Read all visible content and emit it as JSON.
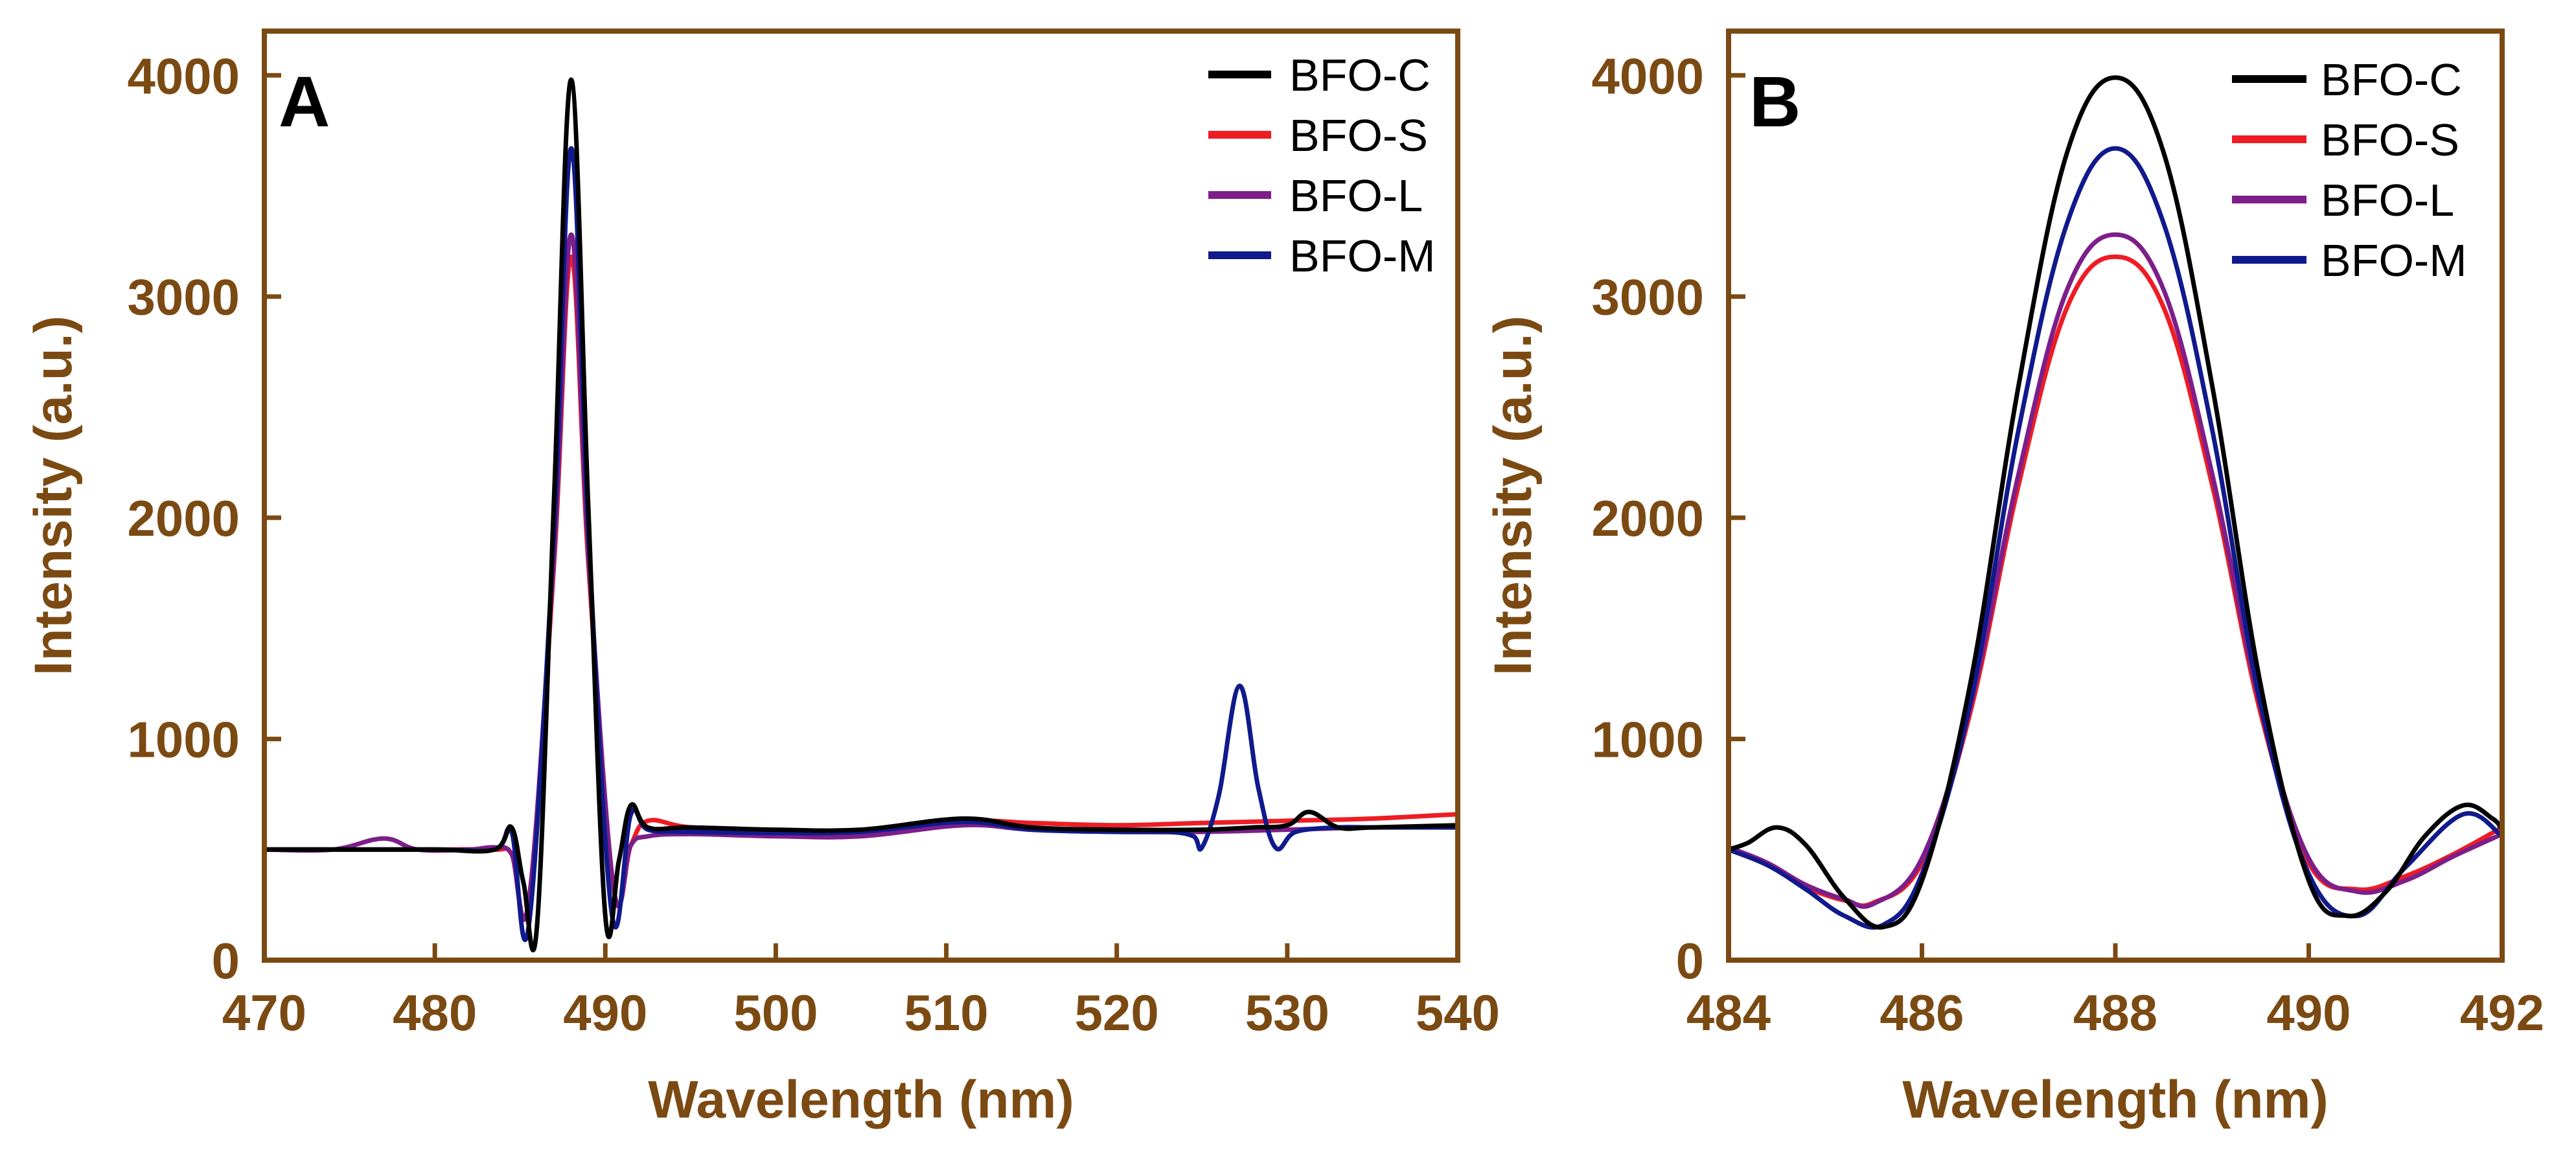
{
  "colors": {
    "axis": "#7b4a12",
    "BFO-C": "#000000",
    "BFO-S": "#ee1c24",
    "BFO-L": "#7d1e8a",
    "BFO-M": "#101a8c"
  },
  "chart_data": [
    {
      "type": "line",
      "panel_label": "A",
      "title": "",
      "xlabel": "Wavelength (nm)",
      "ylabel": "Intensity (a.u.)",
      "xlim": [
        470,
        540
      ],
      "ylim": [
        0,
        4200
      ],
      "x_ticks": [
        "470",
        "480",
        "490",
        "500",
        "510",
        "520",
        "530",
        "540"
      ],
      "y_ticks": [
        "0",
        "1000",
        "2000",
        "3000",
        "4000"
      ],
      "legend_position": "top-right",
      "series": [
        {
          "name": "BFO-C",
          "x": [
            470,
            475,
            480,
            483.5,
            484.5,
            485.2,
            486,
            487,
            488,
            489,
            490,
            490.8,
            491.5,
            492.5,
            495,
            500,
            505,
            511,
            515,
            520,
            525,
            528,
            530,
            531.3,
            533,
            535,
            540
          ],
          "y": [
            500,
            500,
            500,
            500,
            600,
            350,
            160,
            2100,
            3980,
            2050,
            200,
            450,
            700,
            600,
            600,
            590,
            590,
            640,
            600,
            590,
            590,
            600,
            610,
            670,
            600,
            600,
            610
          ]
        },
        {
          "name": "BFO-S",
          "x": [
            470,
            475,
            480,
            483.5,
            484.5,
            485.5,
            487,
            488,
            489,
            490.5,
            491.5,
            492.5,
            495,
            500,
            505,
            511,
            515,
            520,
            525,
            530,
            535,
            540
          ],
          "y": [
            500,
            500,
            500,
            500,
            480,
            260,
            1800,
            3180,
            1800,
            320,
            520,
            630,
            600,
            585,
            585,
            630,
            620,
            610,
            620,
            630,
            640,
            660
          ]
        },
        {
          "name": "BFO-L",
          "x": [
            470,
            474,
            477,
            479,
            482,
            483.5,
            484.5,
            485.5,
            487,
            488,
            489,
            490.5,
            491.5,
            492.5,
            495,
            500,
            505,
            511,
            515,
            520,
            525,
            530,
            535,
            540
          ],
          "y": [
            500,
            500,
            550,
            500,
            500,
            510,
            480,
            260,
            1850,
            3280,
            1850,
            320,
            520,
            560,
            570,
            560,
            560,
            610,
            590,
            580,
            580,
            590,
            600,
            600
          ]
        },
        {
          "name": "BFO-M",
          "x": [
            470,
            480,
            483.5,
            484.5,
            485.5,
            487,
            488,
            489,
            490.4,
            491.5,
            492.5,
            495,
            500,
            505,
            511,
            515,
            520,
            523,
            524.5,
            525,
            526,
            527.2,
            528.3,
            529.3,
            530.5,
            533,
            535,
            540
          ],
          "y": [
            500,
            500,
            500,
            580,
            150,
            1950,
            3670,
            1950,
            200,
            660,
            590,
            580,
            575,
            580,
            625,
            590,
            580,
            580,
            560,
            510,
            750,
            1240,
            780,
            510,
            580,
            600,
            600,
            600
          ]
        }
      ]
    },
    {
      "type": "line",
      "panel_label": "B",
      "title": "",
      "xlabel": "Wavelength (nm)",
      "ylabel": "Intensity (a.u.)",
      "xlim": [
        484,
        492
      ],
      "ylim": [
        0,
        4200
      ],
      "x_ticks": [
        "484",
        "486",
        "488",
        "490",
        "492"
      ],
      "y_ticks": [
        "0",
        "1000",
        "2000",
        "3000",
        "4000"
      ],
      "legend_position": "top-right",
      "series": [
        {
          "name": "BFO-C",
          "x": [
            484,
            484.2,
            484.5,
            484.8,
            485.2,
            485.6,
            486,
            486.5,
            487,
            487.5,
            488,
            488.5,
            489,
            489.5,
            490,
            490.4,
            490.8,
            491.2,
            491.6,
            491.9,
            492
          ],
          "y": [
            500,
            530,
            600,
            520,
            280,
            150,
            360,
            1250,
            2600,
            3650,
            3990,
            3650,
            2600,
            1250,
            360,
            200,
            310,
            560,
            700,
            640,
            590
          ]
        },
        {
          "name": "BFO-S",
          "x": [
            484,
            484.4,
            484.8,
            485.2,
            485.5,
            486,
            486.5,
            487,
            487.5,
            488,
            488.5,
            489,
            489.5,
            490,
            490.5,
            491,
            491.5,
            492
          ],
          "y": [
            500,
            430,
            330,
            270,
            260,
            440,
            1120,
            2150,
            2950,
            3180,
            2950,
            2150,
            1120,
            440,
            320,
            380,
            480,
            600
          ]
        },
        {
          "name": "BFO-L",
          "x": [
            484,
            484.4,
            484.8,
            485.2,
            485.5,
            486,
            486.5,
            487,
            487.5,
            488,
            488.5,
            489,
            489.5,
            490,
            490.5,
            491,
            491.5,
            492
          ],
          "y": [
            510,
            440,
            340,
            275,
            255,
            460,
            1150,
            2200,
            3030,
            3280,
            3030,
            2200,
            1150,
            460,
            310,
            360,
            470,
            570
          ]
        },
        {
          "name": "BFO-M",
          "x": [
            484,
            484.4,
            484.8,
            485.2,
            485.6,
            486,
            486.5,
            487,
            487.5,
            488,
            488.5,
            489,
            489.5,
            490,
            490.5,
            491,
            491.6,
            492
          ],
          "y": [
            500,
            430,
            320,
            200,
            160,
            390,
            1160,
            2400,
            3330,
            3670,
            3330,
            2400,
            1160,
            390,
            200,
            420,
            660,
            560
          ]
        }
      ]
    }
  ]
}
